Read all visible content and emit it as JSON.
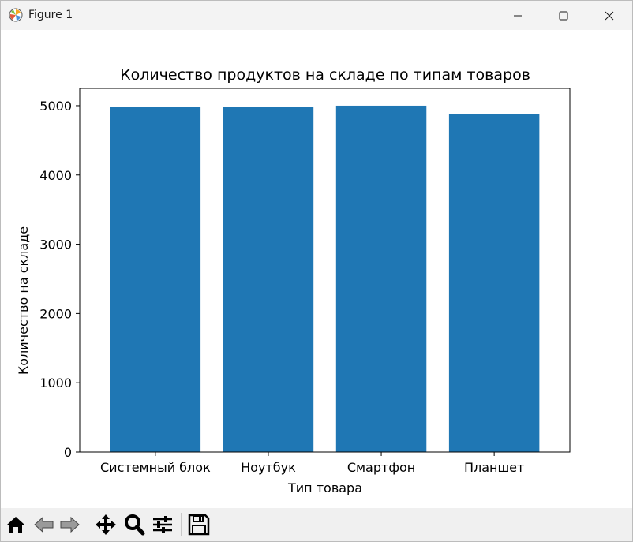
{
  "window": {
    "title": "Figure 1",
    "icons": {
      "app": "matplotlib-logo-icon",
      "minimize": "minimize-icon",
      "maximize": "maximize-icon",
      "close": "close-icon"
    }
  },
  "toolbar": {
    "items": [
      {
        "name": "home-icon"
      },
      {
        "name": "back-arrow-icon"
      },
      {
        "name": "forward-arrow-icon"
      },
      {
        "name": "pan-move-icon"
      },
      {
        "name": "zoom-magnifier-icon"
      },
      {
        "name": "configure-subplots-icon"
      },
      {
        "name": "save-floppy-icon"
      }
    ]
  },
  "chart_data": {
    "type": "bar",
    "title": "Количество продуктов на складе по типам товаров",
    "xlabel": "Тип товара",
    "ylabel": "Количество на складе",
    "categories": [
      "Системный блок",
      "Ноутбук",
      "Смартфон",
      "Планшет"
    ],
    "values": [
      4980,
      4978,
      5000,
      4875
    ],
    "ylim": [
      0,
      5250
    ],
    "yticks": [
      0,
      1000,
      2000,
      3000,
      4000,
      5000
    ],
    "bar_color": "#1f77b4",
    "grid": false,
    "legend": "none"
  }
}
